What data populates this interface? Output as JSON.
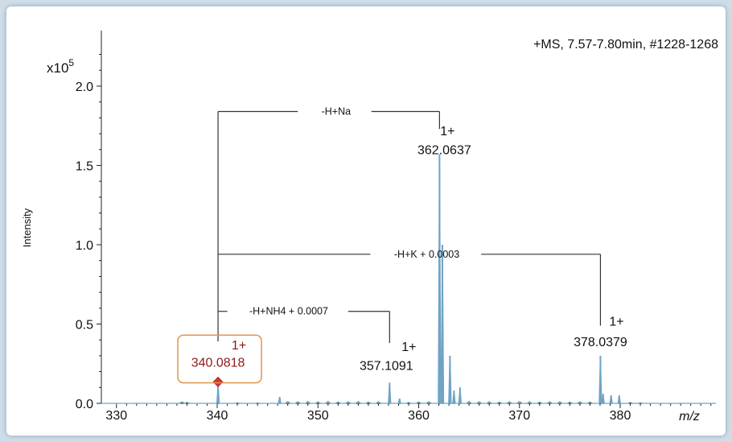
{
  "colors": {
    "spectrum": "#6fa3c4",
    "axis": "#222222",
    "bracket": "#333333",
    "highlight_box": "#e0954a",
    "highlight_text": "#8b1a1a",
    "marker": "#d9342b"
  },
  "chart_data": {
    "type": "line",
    "title": "+MS, 7.57-7.80min, #1228-1268",
    "xlabel": "m/z",
    "ylabel": "Intensity",
    "y_scale_label": "x10",
    "y_scale_exponent": "5",
    "xlim": [
      328.5,
      389.5
    ],
    "ylim": [
      0,
      2.35
    ],
    "x_ticks": [
      330,
      340,
      350,
      360,
      370,
      380
    ],
    "x_tick_labels": [
      "330",
      "340",
      "350",
      "360",
      "370",
      "380"
    ],
    "y_ticks": [
      0.0,
      0.5,
      1.0,
      1.5,
      2.0
    ],
    "y_tick_labels": [
      "0.0",
      "0.5",
      "1.0",
      "1.5",
      "2.0"
    ],
    "grid": false,
    "peaks": [
      {
        "mz": 340.0818,
        "intensity": 0.12,
        "labeled": true
      },
      {
        "mz": 346.2,
        "intensity": 0.04
      },
      {
        "mz": 357.1091,
        "intensity": 0.13,
        "labeled": true
      },
      {
        "mz": 358.1,
        "intensity": 0.03
      },
      {
        "mz": 362.0637,
        "intensity": 1.57,
        "labeled": true
      },
      {
        "mz": 362.35,
        "intensity": 1.0
      },
      {
        "mz": 363.1,
        "intensity": 0.3
      },
      {
        "mz": 363.5,
        "intensity": 0.08
      },
      {
        "mz": 364.1,
        "intensity": 0.1
      },
      {
        "mz": 378.0379,
        "intensity": 0.3,
        "labeled": true
      },
      {
        "mz": 378.3,
        "intensity": 0.06
      },
      {
        "mz": 379.1,
        "intensity": 0.05
      },
      {
        "mz": 379.9,
        "intensity": 0.05
      }
    ],
    "peak_labels": [
      {
        "mz": 340.0818,
        "charge": "1+",
        "value": "340.0818",
        "highlighted": true
      },
      {
        "mz": 357.1091,
        "charge": "1+",
        "value": "357.1091"
      },
      {
        "mz": 362.0637,
        "charge": "1+",
        "value": "362.0637"
      },
      {
        "mz": 378.0379,
        "charge": "1+",
        "value": "378.0379"
      }
    ],
    "adduct_annotations": [
      {
        "label": "-H+Na",
        "from_mz": 340.0818,
        "to_mz": 362.0637
      },
      {
        "label": "-H+K + 0.0003",
        "from_mz": 340.0818,
        "to_mz": 378.0379
      },
      {
        "label": "-H+NH4 + 0.0007",
        "from_mz": 340.0818,
        "to_mz": 357.1091
      }
    ]
  }
}
